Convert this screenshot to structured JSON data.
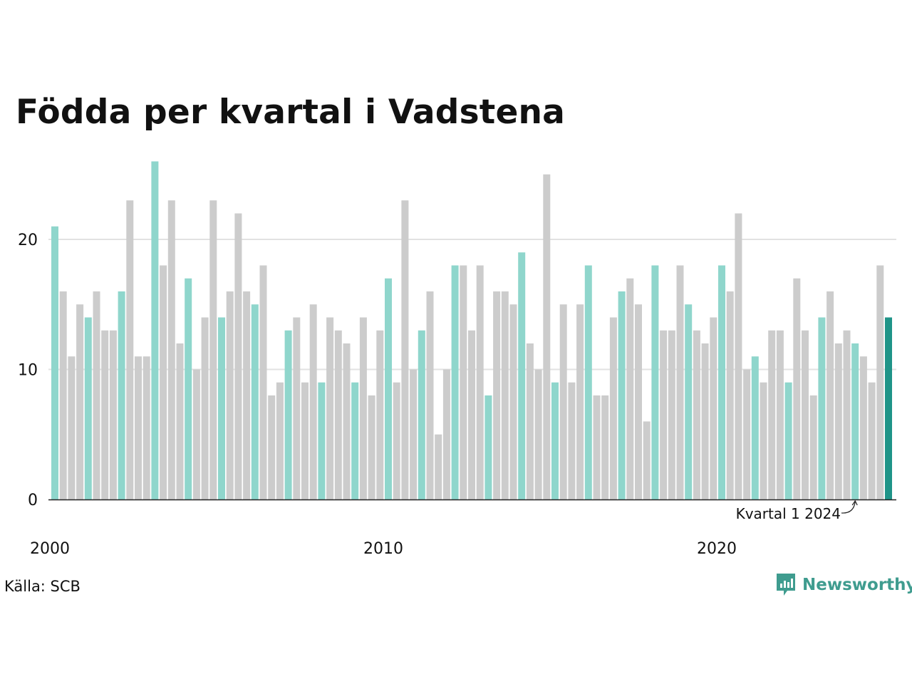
{
  "title": "Födda per kvartal i Vadstena",
  "source": "Källa: SCB",
  "brand": "Newsworthy",
  "colors": {
    "q1": "#8fd6cc",
    "other": "#cccccc",
    "latest": "#1f9488",
    "grid": "#e2e2e2",
    "axis": "#222222",
    "brand": "#3f9c8f"
  },
  "chart_data": {
    "type": "bar",
    "title": "Födda per kvartal i Vadstena",
    "xlabel": "",
    "ylabel": "",
    "ylim": [
      0,
      26
    ],
    "yticks": [
      "0",
      "10",
      "20"
    ],
    "xtick_labels": [
      "2000",
      "2010",
      "2020"
    ],
    "grid": true,
    "annotation": "Kvartal 1 2024",
    "values": [
      21,
      16,
      11,
      15,
      14,
      16,
      13,
      13,
      16,
      23,
      11,
      11,
      26,
      18,
      23,
      12,
      17,
      10,
      14,
      23,
      14,
      16,
      22,
      16,
      15,
      18,
      8,
      9,
      13,
      14,
      9,
      15,
      9,
      14,
      13,
      12,
      9,
      14,
      8,
      13,
      17,
      9,
      23,
      10,
      13,
      16,
      5,
      10,
      18,
      18,
      13,
      18,
      8,
      16,
      16,
      15,
      19,
      12,
      10,
      25,
      9,
      15,
      9,
      15,
      18,
      8,
      8,
      14,
      16,
      17,
      15,
      6,
      18,
      13,
      13,
      18,
      15,
      13,
      12,
      14,
      18,
      16,
      22,
      10,
      11,
      9,
      13,
      13,
      9,
      17,
      13,
      8,
      14,
      16,
      12,
      13,
      12,
      11,
      9,
      18,
      14
    ]
  }
}
